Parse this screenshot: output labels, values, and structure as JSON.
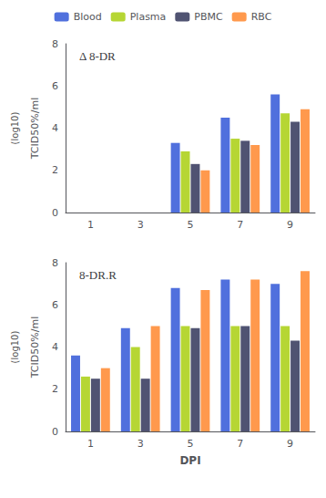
{
  "chart_data": [
    {
      "type": "bar",
      "title": "Δ 8-DR",
      "categories": [
        "1",
        "3",
        "5",
        "7",
        "9"
      ],
      "series": [
        {
          "name": "Blood",
          "values": [
            0,
            0,
            3.3,
            4.5,
            5.6
          ]
        },
        {
          "name": "Plasma",
          "values": [
            0,
            0,
            2.9,
            3.5,
            4.7
          ]
        },
        {
          "name": "PBMC",
          "values": [
            0,
            0,
            2.3,
            3.4,
            4.3
          ]
        },
        {
          "name": "RBC",
          "values": [
            0,
            0,
            2.0,
            3.2,
            4.9
          ]
        }
      ],
      "ylabel": "TCID50%/ml",
      "annotation": "(log10)",
      "ylim": [
        0,
        8
      ],
      "yticks": [
        0,
        2,
        4,
        6,
        8
      ],
      "legend": "top"
    },
    {
      "type": "bar",
      "title": "8-DR.R",
      "categories": [
        "1",
        "3",
        "5",
        "7",
        "9"
      ],
      "series": [
        {
          "name": "Blood",
          "values": [
            3.6,
            4.9,
            6.8,
            7.2,
            7.0
          ]
        },
        {
          "name": "Plasma",
          "values": [
            2.6,
            4.0,
            5.0,
            5.0,
            5.0
          ]
        },
        {
          "name": "PBMC",
          "values": [
            2.5,
            2.5,
            4.9,
            5.0,
            4.3
          ]
        },
        {
          "name": "RBC",
          "values": [
            3.0,
            5.0,
            6.7,
            7.2,
            7.6
          ]
        }
      ],
      "xlabel": "DPI",
      "ylabel": "TCID50%/ml",
      "annotation": "(log10)",
      "ylim": [
        0,
        8
      ],
      "yticks": [
        0,
        2,
        4,
        6,
        8
      ]
    }
  ]
}
